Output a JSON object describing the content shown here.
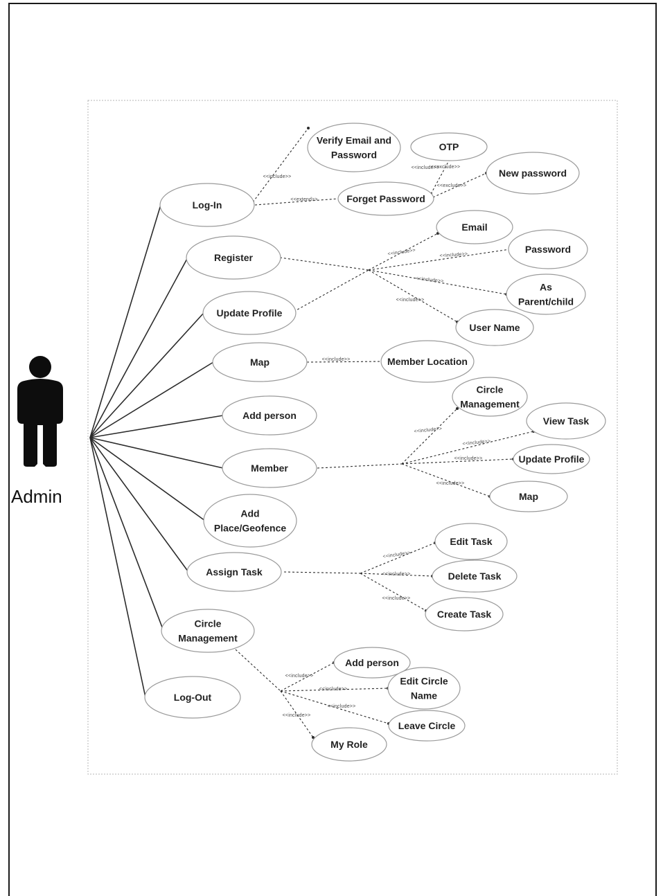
{
  "actor": {
    "name": "Admin"
  },
  "colors": {
    "line": "#2b2b2b",
    "ellipse_stroke": "#9a9a9a",
    "actor": "#0d0d0d",
    "text": "#222222"
  },
  "use_cases": [
    {
      "id": "verify",
      "lines": [
        "Verify Email and",
        "Password"
      ]
    },
    {
      "id": "otp",
      "lines": [
        "OTP"
      ]
    },
    {
      "id": "newpw",
      "lines": [
        "New password"
      ]
    },
    {
      "id": "login",
      "lines": [
        "Log-In"
      ]
    },
    {
      "id": "forget",
      "lines": [
        "Forget Password"
      ]
    },
    {
      "id": "email",
      "lines": [
        "Email"
      ]
    },
    {
      "id": "register",
      "lines": [
        "Register"
      ]
    },
    {
      "id": "password",
      "lines": [
        "Password"
      ]
    },
    {
      "id": "asparent",
      "lines": [
        "As",
        "Parent/child"
      ]
    },
    {
      "id": "updateprofile",
      "lines": [
        "Update Profile"
      ]
    },
    {
      "id": "username",
      "lines": [
        "User Name"
      ]
    },
    {
      "id": "map",
      "lines": [
        "Map"
      ]
    },
    {
      "id": "memberloc",
      "lines": [
        "Member Location"
      ]
    },
    {
      "id": "circlemgmt2",
      "lines": [
        "Circle",
        "Management"
      ]
    },
    {
      "id": "addperson",
      "lines": [
        "Add person"
      ]
    },
    {
      "id": "viewtask",
      "lines": [
        "View Task"
      ]
    },
    {
      "id": "member",
      "lines": [
        "Member"
      ]
    },
    {
      "id": "updateprofile2",
      "lines": [
        "Update Profile"
      ]
    },
    {
      "id": "map2",
      "lines": [
        "Map"
      ]
    },
    {
      "id": "addplace",
      "lines": [
        "Add",
        "Place/Geofence"
      ]
    },
    {
      "id": "edittask",
      "lines": [
        "Edit Task"
      ]
    },
    {
      "id": "assigntask",
      "lines": [
        "Assign Task"
      ]
    },
    {
      "id": "deletetask",
      "lines": [
        "Delete Task"
      ]
    },
    {
      "id": "createtask",
      "lines": [
        "Create Task"
      ]
    },
    {
      "id": "circlemgmt",
      "lines": [
        "Circle",
        "Management"
      ]
    },
    {
      "id": "addperson2",
      "lines": [
        "Add person"
      ]
    },
    {
      "id": "editcircle",
      "lines": [
        "Edit Circle",
        "Name"
      ]
    },
    {
      "id": "logout",
      "lines": [
        "Log-Out"
      ]
    },
    {
      "id": "leavecircle",
      "lines": [
        "Leave Circle"
      ]
    },
    {
      "id": "myrole",
      "lines": [
        "My Role"
      ]
    }
  ],
  "relations": [
    {
      "id": "r1",
      "text": "<<include>>"
    },
    {
      "id": "r2",
      "text": "<<extend>>"
    },
    {
      "id": "r3",
      "text": "<<exclude>>"
    },
    {
      "id": "r4",
      "text": "<<exclude>>"
    },
    {
      "id": "r5",
      "text": "<<include>>"
    },
    {
      "id": "r6",
      "text": "<<include>>"
    },
    {
      "id": "r7",
      "text": "<<include>>"
    },
    {
      "id": "r8",
      "text": "<<include>>"
    },
    {
      "id": "r9",
      "text": "<<include>>"
    },
    {
      "id": "r10",
      "text": "<<include>>"
    },
    {
      "id": "r11",
      "text": "<<include>>"
    },
    {
      "id": "r12",
      "text": "<<include>>"
    },
    {
      "id": "r13",
      "text": "<<include>>"
    },
    {
      "id": "r14",
      "text": "<<include>>"
    },
    {
      "id": "r15",
      "text": "<<include>>"
    },
    {
      "id": "r16",
      "text": "<<include>>"
    },
    {
      "id": "r17",
      "text": "<<include>>"
    },
    {
      "id": "r18",
      "text": "<<include>>"
    },
    {
      "id": "r19",
      "text": "<<include>>"
    },
    {
      "id": "r20",
      "text": "<<include>>"
    },
    {
      "id": "r21",
      "text": "<<include>>"
    }
  ]
}
